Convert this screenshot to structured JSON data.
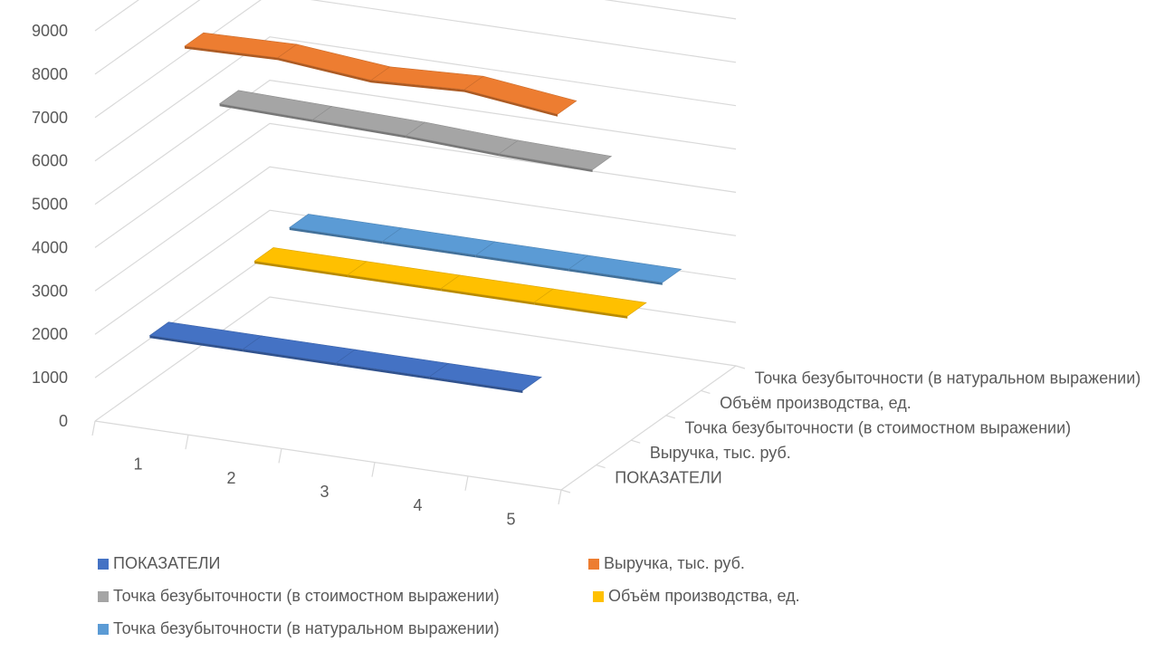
{
  "chart_data": {
    "type": "line",
    "view": "3d",
    "categories": [
      "1",
      "2",
      "3",
      "4",
      "5"
    ],
    "ylim": [
      0,
      9000
    ],
    "yticks": [
      "0",
      "1000",
      "2000",
      "3000",
      "4000",
      "5000",
      "6000",
      "7000",
      "8000",
      "9000"
    ],
    "grid": true,
    "legend_position": "bottom",
    "depth_labels": [
      "ПОКАЗАТЕЛИ",
      "Выручка, тыс. руб.",
      "Точка безубыточности (в стоимостном выражении)",
      "Объём производства, ед.",
      "Точка безубыточности (в натуральном выражении)"
    ],
    "series": [
      {
        "name": "ПОКАЗАТЕЛИ",
        "color": "#4472C4",
        "values": [
          2000,
          2000,
          2000,
          2000,
          2000
        ]
      },
      {
        "name": "Выручка, тыс. руб.",
        "color": "#ED7D31",
        "values": [
          8100,
          8150,
          7950,
          8050,
          7800
        ]
      },
      {
        "name": "Точка безубыточности (в стоимостном выражении)",
        "color": "#A5A5A5",
        "values": [
          6200,
          6150,
          6100,
          6000,
          5950
        ]
      },
      {
        "name": "Объём производства, ед.",
        "color": "#FFC000",
        "values": [
          2000,
          2000,
          2000,
          2000,
          2000
        ]
      },
      {
        "name": "Точка безубыточности (в натуральном выражении)",
        "color": "#5B9BD5",
        "values": [
          2200,
          2200,
          2200,
          2200,
          2200
        ]
      }
    ]
  }
}
